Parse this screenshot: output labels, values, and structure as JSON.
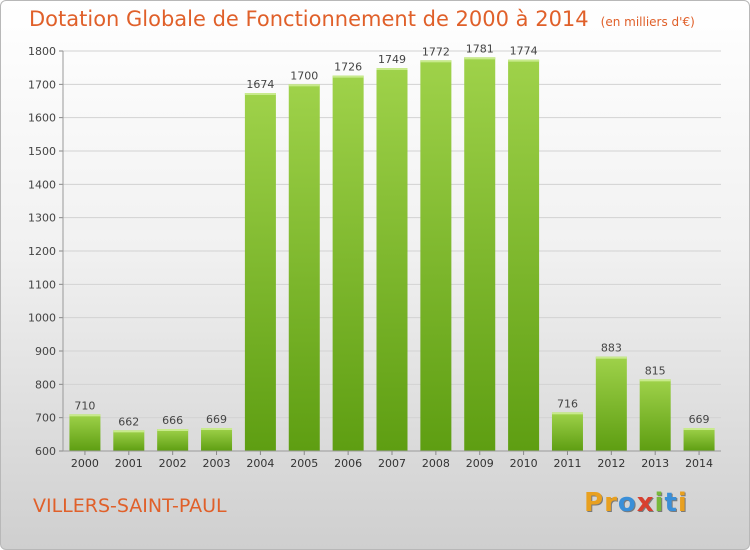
{
  "chart_data": {
    "type": "bar",
    "title": "Dotation Globale de Fonctionnement de 2000 à 2014",
    "subtitle": "(en milliers d'€)",
    "xlabel": "",
    "ylabel": "",
    "categories": [
      "2000",
      "2001",
      "2002",
      "2003",
      "2004",
      "2005",
      "2006",
      "2007",
      "2008",
      "2009",
      "2010",
      "2011",
      "2012",
      "2013",
      "2014"
    ],
    "values": [
      710,
      662,
      666,
      669,
      1674,
      1700,
      1726,
      1749,
      1772,
      1781,
      1774,
      716,
      883,
      815,
      669
    ],
    "ylim": [
      600,
      1800
    ],
    "yticks": [
      600,
      700,
      800,
      900,
      1000,
      1100,
      1200,
      1300,
      1400,
      1500,
      1600,
      1700,
      1800
    ],
    "grid": true,
    "legend": "none",
    "bar_color": "#7fbf2a"
  },
  "footer": {
    "commune": "VILLERS-SAINT-PAUL",
    "brand_letters": [
      {
        "ch": "P",
        "color": "#e8a020"
      },
      {
        "ch": "r",
        "color": "#e8a020"
      },
      {
        "ch": "o",
        "color": "#3a8fd8"
      },
      {
        "ch": "x",
        "color": "#d84030"
      },
      {
        "ch": "i",
        "color": "#78b83a"
      },
      {
        "ch": "t",
        "color": "#3a8fd8"
      },
      {
        "ch": "i",
        "color": "#e8a020"
      }
    ]
  }
}
